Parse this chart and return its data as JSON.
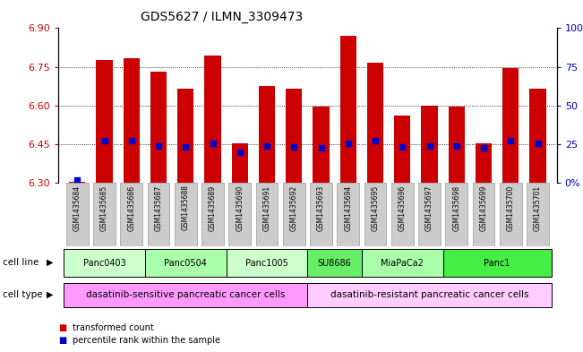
{
  "title": "GDS5627 / ILMN_3309473",
  "samples": [
    "GSM1435684",
    "GSM1435685",
    "GSM1435686",
    "GSM1435687",
    "GSM1435688",
    "GSM1435689",
    "GSM1435690",
    "GSM1435691",
    "GSM1435692",
    "GSM1435693",
    "GSM1435694",
    "GSM1435695",
    "GSM1435696",
    "GSM1435697",
    "GSM1435698",
    "GSM1435699",
    "GSM1435700",
    "GSM1435701"
  ],
  "bar_values": [
    6.305,
    6.775,
    6.785,
    6.73,
    6.665,
    6.795,
    6.455,
    6.675,
    6.665,
    6.595,
    6.87,
    6.765,
    6.56,
    6.6,
    6.595,
    6.455,
    6.745,
    6.665
  ],
  "blue_values": [
    6.31,
    6.465,
    6.465,
    6.445,
    6.44,
    6.455,
    6.42,
    6.445,
    6.44,
    6.435,
    6.455,
    6.465,
    6.44,
    6.445,
    6.445,
    6.435,
    6.465,
    6.455
  ],
  "ylim_left": [
    6.3,
    6.9
  ],
  "ylim_right": [
    0,
    100
  ],
  "yticks_left": [
    6.3,
    6.45,
    6.6,
    6.75,
    6.9
  ],
  "yticks_right": [
    0,
    25,
    50,
    75,
    100
  ],
  "ytick_labels_right": [
    "0%",
    "25",
    "50",
    "75",
    "100%"
  ],
  "bar_color": "#cc0000",
  "blue_color": "#0000cc",
  "bar_width": 0.6,
  "cell_lines": [
    {
      "label": "Panc0403",
      "start": 0,
      "end": 3,
      "color": "#ccffcc"
    },
    {
      "label": "Panc0504",
      "start": 3,
      "end": 6,
      "color": "#aaffaa"
    },
    {
      "label": "Panc1005",
      "start": 6,
      "end": 9,
      "color": "#ccffcc"
    },
    {
      "label": "SU8686",
      "start": 9,
      "end": 11,
      "color": "#66ee66"
    },
    {
      "label": "MiaPaCa2",
      "start": 11,
      "end": 14,
      "color": "#aaffaa"
    },
    {
      "label": "Panc1",
      "start": 14,
      "end": 18,
      "color": "#44ee44"
    }
  ],
  "cell_types": [
    {
      "label": "dasatinib-sensitive pancreatic cancer cells",
      "start": 0,
      "end": 9,
      "color": "#ff99ff"
    },
    {
      "label": "dasatinib-resistant pancreatic cancer cells",
      "start": 9,
      "end": 18,
      "color": "#ffccff"
    }
  ],
  "legend_items": [
    {
      "label": "transformed count",
      "color": "#cc0000"
    },
    {
      "label": "percentile rank within the sample",
      "color": "#0000cc"
    }
  ],
  "bg_color": "#ffffff",
  "grid_color": "#000000",
  "tick_color_left": "#cc0000",
  "tick_color_right": "#0000bb",
  "sample_box_color": "#cccccc",
  "sample_box_edge": "#999999"
}
